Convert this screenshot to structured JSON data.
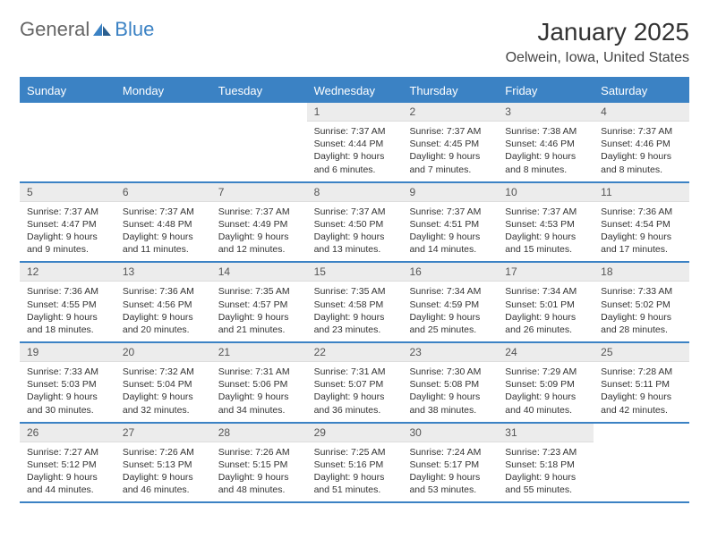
{
  "logo": {
    "text1": "General",
    "text2": "Blue"
  },
  "title": "January 2025",
  "location": "Oelwein, Iowa, United States",
  "colors": {
    "accent": "#3b82c4",
    "header_bg": "#ececec",
    "text": "#333333",
    "logo_gray": "#666666"
  },
  "day_headers": [
    "Sunday",
    "Monday",
    "Tuesday",
    "Wednesday",
    "Thursday",
    "Friday",
    "Saturday"
  ],
  "weeks": [
    [
      null,
      null,
      null,
      {
        "n": "1",
        "sr": "7:37 AM",
        "ss": "4:44 PM",
        "dl": "9 hours and 6 minutes."
      },
      {
        "n": "2",
        "sr": "7:37 AM",
        "ss": "4:45 PM",
        "dl": "9 hours and 7 minutes."
      },
      {
        "n": "3",
        "sr": "7:38 AM",
        "ss": "4:46 PM",
        "dl": "9 hours and 8 minutes."
      },
      {
        "n": "4",
        "sr": "7:37 AM",
        "ss": "4:46 PM",
        "dl": "9 hours and 8 minutes."
      }
    ],
    [
      {
        "n": "5",
        "sr": "7:37 AM",
        "ss": "4:47 PM",
        "dl": "9 hours and 9 minutes."
      },
      {
        "n": "6",
        "sr": "7:37 AM",
        "ss": "4:48 PM",
        "dl": "9 hours and 11 minutes."
      },
      {
        "n": "7",
        "sr": "7:37 AM",
        "ss": "4:49 PM",
        "dl": "9 hours and 12 minutes."
      },
      {
        "n": "8",
        "sr": "7:37 AM",
        "ss": "4:50 PM",
        "dl": "9 hours and 13 minutes."
      },
      {
        "n": "9",
        "sr": "7:37 AM",
        "ss": "4:51 PM",
        "dl": "9 hours and 14 minutes."
      },
      {
        "n": "10",
        "sr": "7:37 AM",
        "ss": "4:53 PM",
        "dl": "9 hours and 15 minutes."
      },
      {
        "n": "11",
        "sr": "7:36 AM",
        "ss": "4:54 PM",
        "dl": "9 hours and 17 minutes."
      }
    ],
    [
      {
        "n": "12",
        "sr": "7:36 AM",
        "ss": "4:55 PM",
        "dl": "9 hours and 18 minutes."
      },
      {
        "n": "13",
        "sr": "7:36 AM",
        "ss": "4:56 PM",
        "dl": "9 hours and 20 minutes."
      },
      {
        "n": "14",
        "sr": "7:35 AM",
        "ss": "4:57 PM",
        "dl": "9 hours and 21 minutes."
      },
      {
        "n": "15",
        "sr": "7:35 AM",
        "ss": "4:58 PM",
        "dl": "9 hours and 23 minutes."
      },
      {
        "n": "16",
        "sr": "7:34 AM",
        "ss": "4:59 PM",
        "dl": "9 hours and 25 minutes."
      },
      {
        "n": "17",
        "sr": "7:34 AM",
        "ss": "5:01 PM",
        "dl": "9 hours and 26 minutes."
      },
      {
        "n": "18",
        "sr": "7:33 AM",
        "ss": "5:02 PM",
        "dl": "9 hours and 28 minutes."
      }
    ],
    [
      {
        "n": "19",
        "sr": "7:33 AM",
        "ss": "5:03 PM",
        "dl": "9 hours and 30 minutes."
      },
      {
        "n": "20",
        "sr": "7:32 AM",
        "ss": "5:04 PM",
        "dl": "9 hours and 32 minutes."
      },
      {
        "n": "21",
        "sr": "7:31 AM",
        "ss": "5:06 PM",
        "dl": "9 hours and 34 minutes."
      },
      {
        "n": "22",
        "sr": "7:31 AM",
        "ss": "5:07 PM",
        "dl": "9 hours and 36 minutes."
      },
      {
        "n": "23",
        "sr": "7:30 AM",
        "ss": "5:08 PM",
        "dl": "9 hours and 38 minutes."
      },
      {
        "n": "24",
        "sr": "7:29 AM",
        "ss": "5:09 PM",
        "dl": "9 hours and 40 minutes."
      },
      {
        "n": "25",
        "sr": "7:28 AM",
        "ss": "5:11 PM",
        "dl": "9 hours and 42 minutes."
      }
    ],
    [
      {
        "n": "26",
        "sr": "7:27 AM",
        "ss": "5:12 PM",
        "dl": "9 hours and 44 minutes."
      },
      {
        "n": "27",
        "sr": "7:26 AM",
        "ss": "5:13 PM",
        "dl": "9 hours and 46 minutes."
      },
      {
        "n": "28",
        "sr": "7:26 AM",
        "ss": "5:15 PM",
        "dl": "9 hours and 48 minutes."
      },
      {
        "n": "29",
        "sr": "7:25 AM",
        "ss": "5:16 PM",
        "dl": "9 hours and 51 minutes."
      },
      {
        "n": "30",
        "sr": "7:24 AM",
        "ss": "5:17 PM",
        "dl": "9 hours and 53 minutes."
      },
      {
        "n": "31",
        "sr": "7:23 AM",
        "ss": "5:18 PM",
        "dl": "9 hours and 55 minutes."
      },
      null
    ]
  ]
}
